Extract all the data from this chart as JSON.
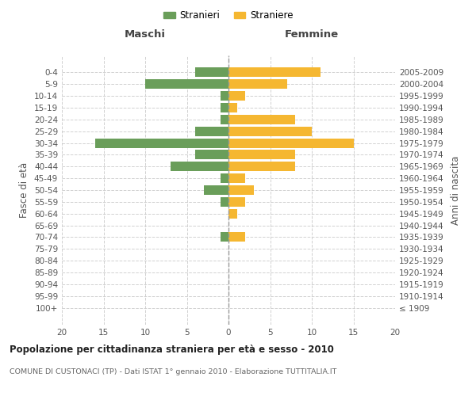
{
  "age_groups": [
    "0-4",
    "5-9",
    "10-14",
    "15-19",
    "20-24",
    "25-29",
    "30-34",
    "35-39",
    "40-44",
    "45-49",
    "50-54",
    "55-59",
    "60-64",
    "65-69",
    "70-74",
    "75-79",
    "80-84",
    "85-89",
    "90-94",
    "95-99",
    "100+"
  ],
  "birth_years": [
    "2005-2009",
    "2000-2004",
    "1995-1999",
    "1990-1994",
    "1985-1989",
    "1980-1984",
    "1975-1979",
    "1970-1974",
    "1965-1969",
    "1960-1964",
    "1955-1959",
    "1950-1954",
    "1945-1949",
    "1940-1944",
    "1935-1939",
    "1930-1934",
    "1925-1929",
    "1920-1924",
    "1915-1919",
    "1910-1914",
    "≤ 1909"
  ],
  "maschi": [
    4,
    10,
    1,
    1,
    1,
    4,
    16,
    4,
    7,
    1,
    3,
    1,
    0,
    0,
    1,
    0,
    0,
    0,
    0,
    0,
    0
  ],
  "femmine": [
    11,
    7,
    2,
    1,
    8,
    10,
    15,
    8,
    8,
    2,
    3,
    2,
    1,
    0,
    2,
    0,
    0,
    0,
    0,
    0,
    0
  ],
  "male_color": "#6a9e5a",
  "female_color": "#f5b731",
  "background_color": "#ffffff",
  "grid_color": "#cccccc",
  "title": "Popolazione per cittadinanza straniera per età e sesso - 2010",
  "subtitle": "COMUNE DI CUSTONACI (TP) - Dati ISTAT 1° gennaio 2010 - Elaborazione TUTTITALIA.IT",
  "xlabel_left": "Maschi",
  "xlabel_right": "Femmine",
  "ylabel_left": "Fasce di età",
  "ylabel_right": "Anni di nascita",
  "xlim": 20,
  "legend_male": "Stranieri",
  "legend_female": "Straniere"
}
